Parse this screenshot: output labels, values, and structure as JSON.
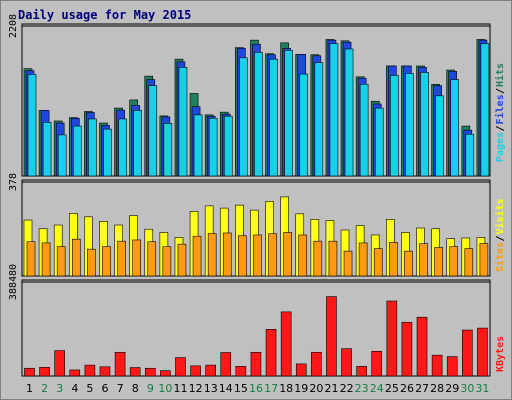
{
  "title": "Daily usage for May 2015",
  "colors": {
    "hits": "#208060",
    "files": "#1e46e0",
    "pages": "#18d0e8",
    "visits": "#ffff18",
    "sites": "#ff9a12",
    "kbytes": "#ff1818",
    "weekend_day": "#108040",
    "weekday": "#000000"
  },
  "chart_data": [
    {
      "type": "bar",
      "panel": "top",
      "ylim": [
        0,
        2208
      ],
      "ytick_label": "2208",
      "legend": [
        "Pages",
        "Files",
        "Hits"
      ],
      "categories": [
        "1",
        "2",
        "3",
        "4",
        "5",
        "6",
        "7",
        "8",
        "9",
        "10",
        "11",
        "12",
        "13",
        "14",
        "15",
        "16",
        "17",
        "18",
        "19",
        "20",
        "21",
        "22",
        "23",
        "24",
        "25",
        "26",
        "27",
        "28",
        "29",
        "30",
        "31"
      ],
      "series": [
        {
          "name": "Hits",
          "values": [
            1580,
            965,
            810,
            860,
            950,
            780,
            1000,
            1120,
            1470,
            885,
            1720,
            1215,
            900,
            940,
            1890,
            2000,
            1800,
            1960,
            1790,
            1785,
            2010,
            1990,
            1460,
            1100,
            1620,
            1620,
            1620,
            1350,
            1560,
            735,
            2010
          ]
        },
        {
          "name": "Files",
          "values": [
            1550,
            965,
            780,
            850,
            935,
            745,
            970,
            1040,
            1420,
            870,
            1680,
            1020,
            880,
            910,
            1880,
            1940,
            1785,
            1880,
            1790,
            1770,
            2000,
            1970,
            1440,
            1060,
            1620,
            1620,
            1600,
            1330,
            1540,
            675,
            2000
          ]
        },
        {
          "name": "Pages",
          "values": [
            1495,
            790,
            605,
            735,
            840,
            690,
            840,
            965,
            1330,
            775,
            1600,
            900,
            850,
            880,
            1740,
            1820,
            1720,
            1850,
            1500,
            1670,
            1950,
            1870,
            1350,
            1000,
            1480,
            1510,
            1525,
            1180,
            1420,
            615,
            1950
          ]
        }
      ]
    },
    {
      "type": "bar",
      "panel": "middle",
      "ylim": [
        0,
        378
      ],
      "ytick_label": "378",
      "legend": [
        "Sites",
        "Visits"
      ],
      "categories": [
        "1",
        "2",
        "3",
        "4",
        "5",
        "6",
        "7",
        "8",
        "9",
        "10",
        "11",
        "12",
        "13",
        "14",
        "15",
        "16",
        "17",
        "18",
        "19",
        "20",
        "21",
        "22",
        "23",
        "24",
        "25",
        "26",
        "27",
        "28",
        "29",
        "30",
        "31"
      ],
      "series": [
        {
          "name": "Visits",
          "values": [
            225,
            190,
            205,
            252,
            238,
            220,
            205,
            243,
            188,
            175,
            155,
            260,
            282,
            273,
            285,
            265,
            300,
            318,
            250,
            228,
            223,
            185,
            203,
            165,
            228,
            175,
            193,
            190,
            150,
            153,
            155
          ]
        },
        {
          "name": "Sites",
          "values": [
            138,
            133,
            118,
            148,
            108,
            118,
            140,
            145,
            138,
            118,
            128,
            160,
            170,
            173,
            162,
            165,
            170,
            175,
            165,
            140,
            140,
            100,
            133,
            110,
            135,
            100,
            130,
            115,
            118,
            110,
            130
          ]
        }
      ]
    },
    {
      "type": "bar",
      "panel": "bottom",
      "ylim": [
        0,
        388480
      ],
      "ytick_label": "388480",
      "legend": [
        "KBytes"
      ],
      "categories": [
        "1",
        "2",
        "3",
        "4",
        "5",
        "6",
        "7",
        "8",
        "9",
        "10",
        "11",
        "12",
        "13",
        "14",
        "15",
        "16",
        "17",
        "18",
        "19",
        "20",
        "21",
        "22",
        "23",
        "24",
        "25",
        "26",
        "27",
        "28",
        "29",
        "30",
        "31"
      ],
      "series": [
        {
          "name": "KBytes",
          "values": [
            32000,
            36000,
            105000,
            25000,
            45000,
            38000,
            98000,
            35000,
            32000,
            22000,
            76000,
            42000,
            45000,
            97000,
            40000,
            98000,
            193000,
            265000,
            50000,
            98000,
            328000,
            113000,
            40000,
            102000,
            310000,
            222000,
            243000,
            86000,
            80000,
            190000,
            198000
          ]
        }
      ]
    }
  ]
}
